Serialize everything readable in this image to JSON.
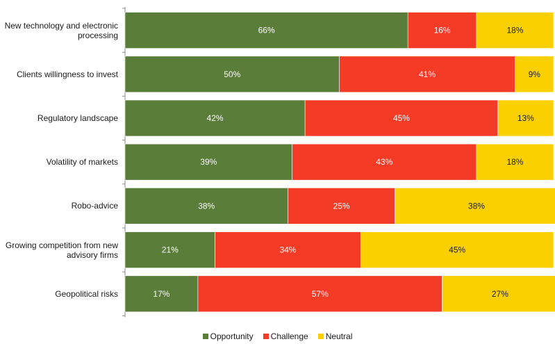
{
  "chart_data": {
    "type": "bar",
    "orientation": "horizontal",
    "stacked": true,
    "categories": [
      "New technology and electronic processing",
      "Clients willingness to invest",
      "Regulatory landscape",
      "Volatility of markets",
      "Robo-advice",
      "Growing competition from new advisory firms",
      "Geopolitical risks"
    ],
    "series": [
      {
        "name": "Opportunity",
        "color": "#5a7d3a",
        "values": [
          66,
          50,
          42,
          39,
          38,
          21,
          17
        ]
      },
      {
        "name": "Challenge",
        "color": "#f33b26",
        "values": [
          16,
          41,
          45,
          43,
          25,
          34,
          57
        ]
      },
      {
        "name": "Neutral",
        "color": "#fbd000",
        "values": [
          18,
          9,
          13,
          18,
          38,
          45,
          27
        ]
      }
    ],
    "value_suffix": "%",
    "xlim": [
      0,
      100
    ],
    "legend_position": "bottom"
  },
  "legend": {
    "opportunity": "Opportunity",
    "challenge": "Challenge",
    "neutral": "Neutral"
  }
}
